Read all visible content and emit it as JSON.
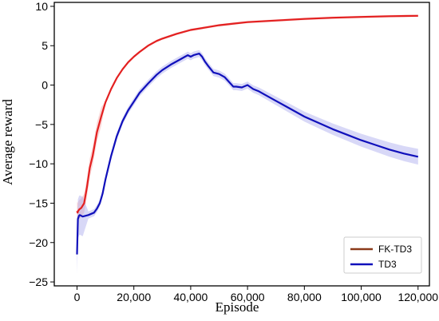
{
  "chart_data": {
    "type": "line",
    "xlabel": "Episode",
    "ylabel": "Average reward",
    "xlim": [
      -8000,
      124000
    ],
    "ylim": [
      -25.5,
      10.5
    ],
    "xticks": [
      0,
      20000,
      40000,
      60000,
      80000,
      100000,
      120000
    ],
    "xtick_labels": [
      "0",
      "20,000",
      "40,000",
      "60,000",
      "80,000",
      "100,000",
      "120,000"
    ],
    "yticks": [
      -25,
      -20,
      -15,
      -10,
      -5,
      0,
      5,
      10
    ],
    "ytick_labels": [
      "−25",
      "−20",
      "−15",
      "−10",
      "−5",
      "0",
      "5",
      "10"
    ],
    "grid": false,
    "legend_position": "bottom-right",
    "series": [
      {
        "name": "FK-TD3",
        "color": "#e32020",
        "x": [
          0,
          200,
          400,
          800,
          1500,
          2500,
          3500,
          4500,
          5500,
          7000,
          8500,
          10000,
          12000,
          14000,
          16000,
          18000,
          20000,
          22000,
          25000,
          28000,
          30000,
          35000,
          40000,
          45000,
          50000,
          55000,
          60000,
          70000,
          80000,
          90000,
          100000,
          110000,
          120000
        ],
        "y": [
          -16.0,
          -16.2,
          -16.0,
          -15.8,
          -15.6,
          -15.0,
          -13.0,
          -10.5,
          -9.0,
          -6.0,
          -4.0,
          -2.2,
          -0.5,
          0.9,
          2.0,
          2.9,
          3.6,
          4.2,
          5.0,
          5.6,
          5.9,
          6.5,
          7.0,
          7.3,
          7.6,
          7.8,
          8.0,
          8.2,
          8.4,
          8.55,
          8.65,
          8.75,
          8.8
        ]
      },
      {
        "name": "TD3",
        "color": "#1010bb",
        "x": [
          0,
          300,
          700,
          1000,
          2000,
          4000,
          6000,
          7000,
          8000,
          9000,
          10000,
          12000,
          14000,
          16000,
          18000,
          20000,
          22000,
          25000,
          28000,
          30000,
          33000,
          36000,
          38000,
          39000,
          40000,
          41000,
          42000,
          43000,
          44000,
          45000,
          46000,
          48000,
          50000,
          52000,
          54000,
          55000,
          56000,
          58000,
          60000,
          62000,
          64000,
          66000,
          70000,
          75000,
          80000,
          85000,
          90000,
          95000,
          100000,
          105000,
          110000,
          115000,
          120000
        ],
        "y": [
          -21.5,
          -17.0,
          -16.6,
          -16.5,
          -16.7,
          -16.5,
          -16.2,
          -15.7,
          -15.0,
          -13.8,
          -12.0,
          -9.0,
          -6.5,
          -4.6,
          -3.2,
          -2.1,
          -1.0,
          0.2,
          1.3,
          1.9,
          2.6,
          3.2,
          3.6,
          3.8,
          3.6,
          3.8,
          3.9,
          4.0,
          3.6,
          3.0,
          2.5,
          1.6,
          1.4,
          1.0,
          0.2,
          -0.2,
          -0.2,
          -0.3,
          0.0,
          -0.5,
          -0.8,
          -1.2,
          -2.0,
          -3.0,
          -4.0,
          -4.8,
          -5.6,
          -6.3,
          -7.0,
          -7.6,
          -8.2,
          -8.7,
          -9.1
        ]
      }
    ]
  }
}
